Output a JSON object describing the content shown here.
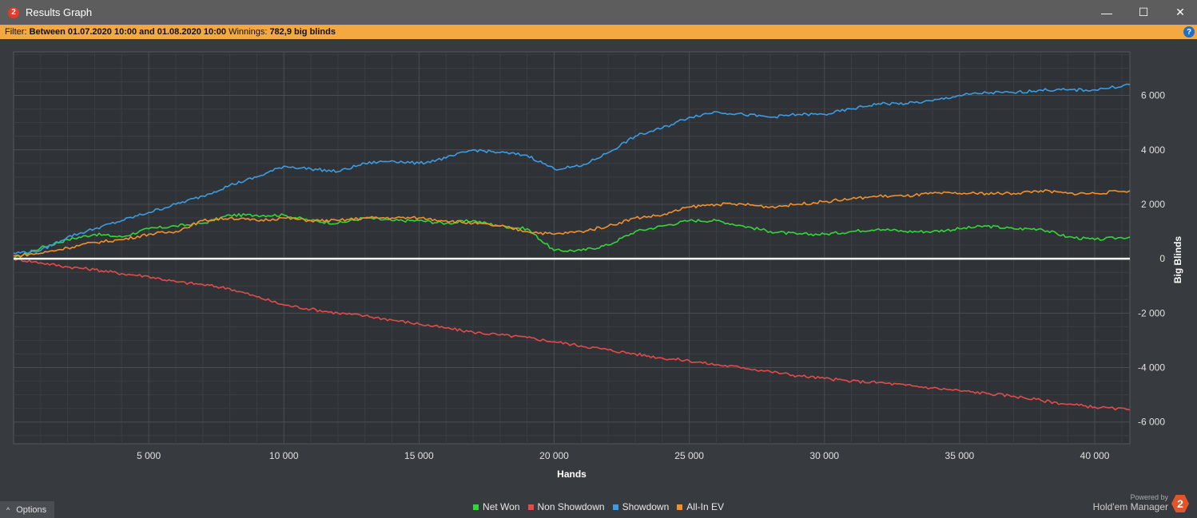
{
  "window": {
    "icon_text": "2",
    "title": "Results Graph",
    "minimize_glyph": "—",
    "maximize_glyph": "☐",
    "close_glyph": "✕"
  },
  "filter": {
    "prefix": "Filter:",
    "range": "Between 01.07.2020 10:00 and 01.08.2020 10:00",
    "winnings_label": "Winnings:",
    "winnings_value": "782,9 big blinds",
    "help_glyph": "?"
  },
  "footer": {
    "options_label": "Options",
    "options_chevron": "^",
    "powered_by": "Powered by",
    "brand_name": "Hold'em Manager",
    "brand_logo_text": "2"
  },
  "colors": {
    "net_won": "#33d63a",
    "non_showdown": "#e14b4b",
    "showdown": "#3d9be0",
    "all_in_ev": "#f0902f",
    "zero_line": "#ffffff",
    "plot_bg": "#2f3236",
    "grid": "#4a4e54"
  },
  "chart_data": {
    "type": "line",
    "xlabel": "Hands",
    "ylabel": "Big Blinds",
    "xlim": [
      0,
      41300
    ],
    "ylim": [
      -6800,
      7600
    ],
    "x_ticks": [
      5000,
      10000,
      15000,
      20000,
      25000,
      30000,
      35000,
      40000
    ],
    "x_tick_labels": [
      "5 000",
      "10 000",
      "15 000",
      "20 000",
      "25 000",
      "30 000",
      "35 000",
      "40 000"
    ],
    "y_ticks": [
      6000,
      4000,
      2000,
      0,
      -2000,
      -4000,
      -6000
    ],
    "y_tick_labels": [
      "6 000",
      "4 000",
      "2 000",
      "0",
      "-2 000",
      "-4 000",
      "-6 000"
    ],
    "grid": true,
    "legend_position": "bottom-center",
    "series": [
      {
        "name": "Net Won",
        "color_key": "net_won",
        "x": [
          0,
          1000,
          2000,
          3000,
          4000,
          5000,
          6000,
          7000,
          8000,
          9000,
          10000,
          11000,
          12000,
          13000,
          14000,
          15000,
          16000,
          17000,
          18000,
          19000,
          20000,
          21000,
          22000,
          23000,
          24000,
          25000,
          26000,
          27000,
          28000,
          29000,
          30000,
          31000,
          32000,
          33000,
          34000,
          35000,
          36000,
          37000,
          38000,
          39000,
          40000,
          41300
        ],
        "values": [
          0,
          400,
          700,
          900,
          800,
          1100,
          1200,
          1300,
          1600,
          1600,
          1600,
          1400,
          1300,
          1500,
          1400,
          1400,
          1300,
          1400,
          1200,
          1100,
          300,
          300,
          500,
          1000,
          1200,
          1400,
          1400,
          1200,
          1000,
          900,
          900,
          1000,
          1100,
          1000,
          1000,
          1100,
          1200,
          1100,
          1100,
          800,
          700,
          800
        ]
      },
      {
        "name": "Non Showdown",
        "color_key": "non_showdown",
        "x": [
          0,
          1000,
          2000,
          3000,
          4000,
          5000,
          6000,
          7000,
          8000,
          9000,
          10000,
          11000,
          12000,
          13000,
          14000,
          15000,
          16000,
          17000,
          18000,
          19000,
          20000,
          21000,
          22000,
          23000,
          24000,
          25000,
          26000,
          27000,
          28000,
          29000,
          30000,
          31000,
          32000,
          33000,
          34000,
          35000,
          36000,
          37000,
          38000,
          39000,
          40000,
          41300
        ],
        "values": [
          0,
          -150,
          -300,
          -400,
          -550,
          -650,
          -850,
          -950,
          -1100,
          -1400,
          -1700,
          -1850,
          -2000,
          -2100,
          -2250,
          -2400,
          -2550,
          -2700,
          -2800,
          -2900,
          -3050,
          -3200,
          -3350,
          -3500,
          -3650,
          -3750,
          -3900,
          -4000,
          -4150,
          -4300,
          -4400,
          -4500,
          -4550,
          -4650,
          -4750,
          -4850,
          -4950,
          -5050,
          -5200,
          -5350,
          -5450,
          -5550
        ]
      },
      {
        "name": "Showdown",
        "color_key": "showdown",
        "x": [
          0,
          1000,
          2000,
          3000,
          4000,
          5000,
          6000,
          7000,
          8000,
          9000,
          10000,
          11000,
          12000,
          13000,
          14000,
          15000,
          16000,
          17000,
          18000,
          19000,
          20000,
          21000,
          22000,
          23000,
          24000,
          25000,
          26000,
          27000,
          28000,
          29000,
          30000,
          31000,
          32000,
          33000,
          34000,
          35000,
          36000,
          37000,
          38000,
          39000,
          40000,
          41300
        ],
        "values": [
          200,
          300,
          800,
          1100,
          1400,
          1700,
          2000,
          2300,
          2700,
          3000,
          3400,
          3300,
          3200,
          3500,
          3600,
          3500,
          3700,
          4000,
          3900,
          3800,
          3300,
          3400,
          3900,
          4500,
          4800,
          5200,
          5400,
          5300,
          5200,
          5300,
          5300,
          5500,
          5700,
          5700,
          5800,
          6000,
          6100,
          6100,
          6200,
          6200,
          6200,
          6400
        ]
      },
      {
        "name": "All-In EV",
        "color_key": "all_in_ev",
        "x": [
          0,
          1000,
          2000,
          3000,
          4000,
          5000,
          6000,
          7000,
          8000,
          9000,
          10000,
          11000,
          12000,
          13000,
          14000,
          15000,
          16000,
          17000,
          18000,
          19000,
          20000,
          21000,
          22000,
          23000,
          24000,
          25000,
          26000,
          27000,
          28000,
          29000,
          30000,
          31000,
          32000,
          33000,
          34000,
          35000,
          36000,
          37000,
          38000,
          39000,
          40000,
          41300
        ],
        "values": [
          100,
          200,
          400,
          600,
          700,
          900,
          1000,
          1400,
          1500,
          1400,
          1500,
          1400,
          1400,
          1500,
          1500,
          1500,
          1400,
          1300,
          1200,
          1000,
          900,
          1000,
          1200,
          1500,
          1600,
          1900,
          2000,
          2000,
          1900,
          2000,
          2100,
          2200,
          2300,
          2300,
          2400,
          2400,
          2400,
          2400,
          2500,
          2400,
          2400,
          2500
        ]
      }
    ]
  }
}
